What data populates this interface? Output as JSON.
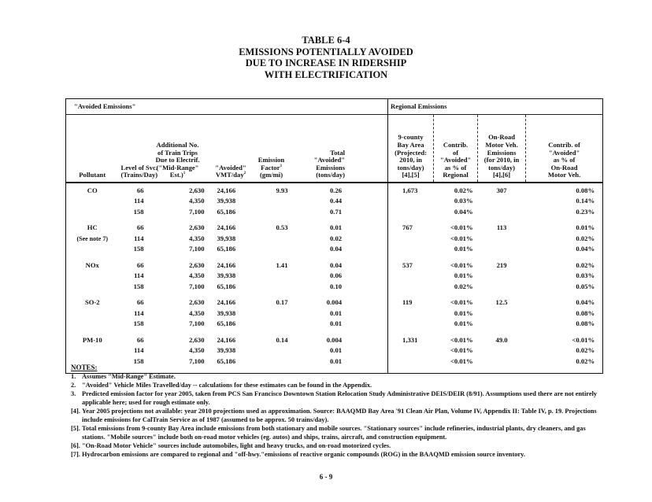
{
  "title": [
    "TABLE 6-4",
    "EMISSIONS POTENTIALLY AVOIDED",
    "DUE TO INCREASE IN RIDERSHIP",
    "WITH ELECTRIFICATION"
  ],
  "group_headers": {
    "avoided": "\"Avoided Emissions\"",
    "regional": "Regional Emissions"
  },
  "columns": [
    "Pollutant",
    "Level of Svc. (Trains/Day)",
    "Additional No. of Train Trips Due to Electrif. (\"Mid-Range\" Est.)1",
    "\"Avoided\" VMT/day2",
    "Emission Factor3 (gm/mi)",
    "Total \"Avoided\" Emissions (tons/day)",
    "9-county Bay Area (Projected: 2010, in tons/day) [4],[5]",
    "Contrib. of \"Avoided\" as % of Regional",
    "On-Road Motor Veh. Emissions (for 2010, in tons/day) [4],[6]",
    "Contrib. of \"Avoided\" as % of On-Road Motor Veh."
  ],
  "groups": [
    {
      "pollutant": "CO",
      "note": "",
      "factor": "9.93",
      "regional": "1,673",
      "onroad": "307",
      "rows": [
        [
          "66",
          "2,630",
          "24,166",
          "0.26",
          "0.02%",
          "0.08%"
        ],
        [
          "114",
          "4,350",
          "39,938",
          "0.44",
          "0.03%",
          "0.14%"
        ],
        [
          "158",
          "7,100",
          "65,186",
          "0.71",
          "0.04%",
          "0.23%"
        ]
      ]
    },
    {
      "pollutant": "HC",
      "note": "(See note 7)",
      "factor": "0.53",
      "regional": "767",
      "onroad": "113",
      "rows": [
        [
          "66",
          "2,630",
          "24,166",
          "0.01",
          "<0.01%",
          "0.01%"
        ],
        [
          "114",
          "4,350",
          "39,938",
          "0.02",
          "<0.01%",
          "0.02%"
        ],
        [
          "158",
          "7,100",
          "65,186",
          "0.04",
          "0.01%",
          "0.04%"
        ]
      ]
    },
    {
      "pollutant": "NOx",
      "note": "",
      "factor": "1.41",
      "regional": "537",
      "onroad": "219",
      "rows": [
        [
          "66",
          "2,630",
          "24,166",
          "0.04",
          "<0.01%",
          "0.02%"
        ],
        [
          "114",
          "4,350",
          "39,938",
          "0.06",
          "0.01%",
          "0.03%"
        ],
        [
          "158",
          "7,100",
          "65,186",
          "0.10",
          "0.02%",
          "0.05%"
        ]
      ]
    },
    {
      "pollutant": "SO-2",
      "note": "",
      "factor": "0.17",
      "regional": "119",
      "onroad": "12.5",
      "rows": [
        [
          "66",
          "2,630",
          "24,166",
          "0.004",
          "<0.01%",
          "0.04%"
        ],
        [
          "114",
          "4,350",
          "39,938",
          "0.01",
          "0.01%",
          "0.08%"
        ],
        [
          "158",
          "7,100",
          "65,186",
          "0.01",
          "0.01%",
          "0.08%"
        ]
      ]
    },
    {
      "pollutant": "PM-10",
      "note": "",
      "factor": "0.14",
      "regional": "1,331",
      "onroad": "49.0",
      "rows": [
        [
          "66",
          "2,630",
          "24,166",
          "0.004",
          "<0.01%",
          "<0.01%"
        ],
        [
          "114",
          "4,350",
          "39,938",
          "0.01",
          "<0.01%",
          "0.02%"
        ],
        [
          "158",
          "7,100",
          "65,186",
          "0.01",
          "<0.01%",
          "0.02%"
        ]
      ]
    }
  ],
  "notes_heading": "NOTES:",
  "notes": [
    [
      "1.",
      "Assumes \"Mid-Range\" Estimate."
    ],
    [
      "2.",
      "\"Avoided\" Vehicle Miles Travelled/day -- calculations for these estimates can be found in the Appendix."
    ],
    [
      "3.",
      "Predicted emission factor for year 2005, taken from PCS San Francisco Downtown Station Relocation Study Administrative DEIS/DEIR (8/91). Assumptions used there are not entirely applicable here; used for rough estimate only."
    ],
    [
      "[4].",
      "Year 2005 projections not available: year 2010 projections used as approximation. Source: BAAQMD Bay Area '91 Clean Air Plan, Volume IV, Appendix II: Table IV, p. 19. Projections include emissions for CalTrain Service as of 1987 (assumed to be approx. 50 trains/day)."
    ],
    [
      "[5].",
      "Total emissions from 9-county Bay Area include emissions from both stationary and mobile sources. \"Stationary sources\" include refineries, industrial plants, dry cleaners, and gas stations. \"Mobile sources\" include both on-road motor vehicles (eg. autos) and ships, trains, aircraft, and construction equipment."
    ],
    [
      "[6].",
      "\"On-Road Motor Vehicle\" sources include automobiles, light and heavy trucks, and on-road motorized cycles."
    ],
    [
      "[7].",
      "Hydrocarbon emissions are compared to regional and \"off-hwy.\"emissions of reactive organic compounds (ROG) in the BAAQMD emission source inventory."
    ]
  ],
  "page_number": "6 - 9"
}
